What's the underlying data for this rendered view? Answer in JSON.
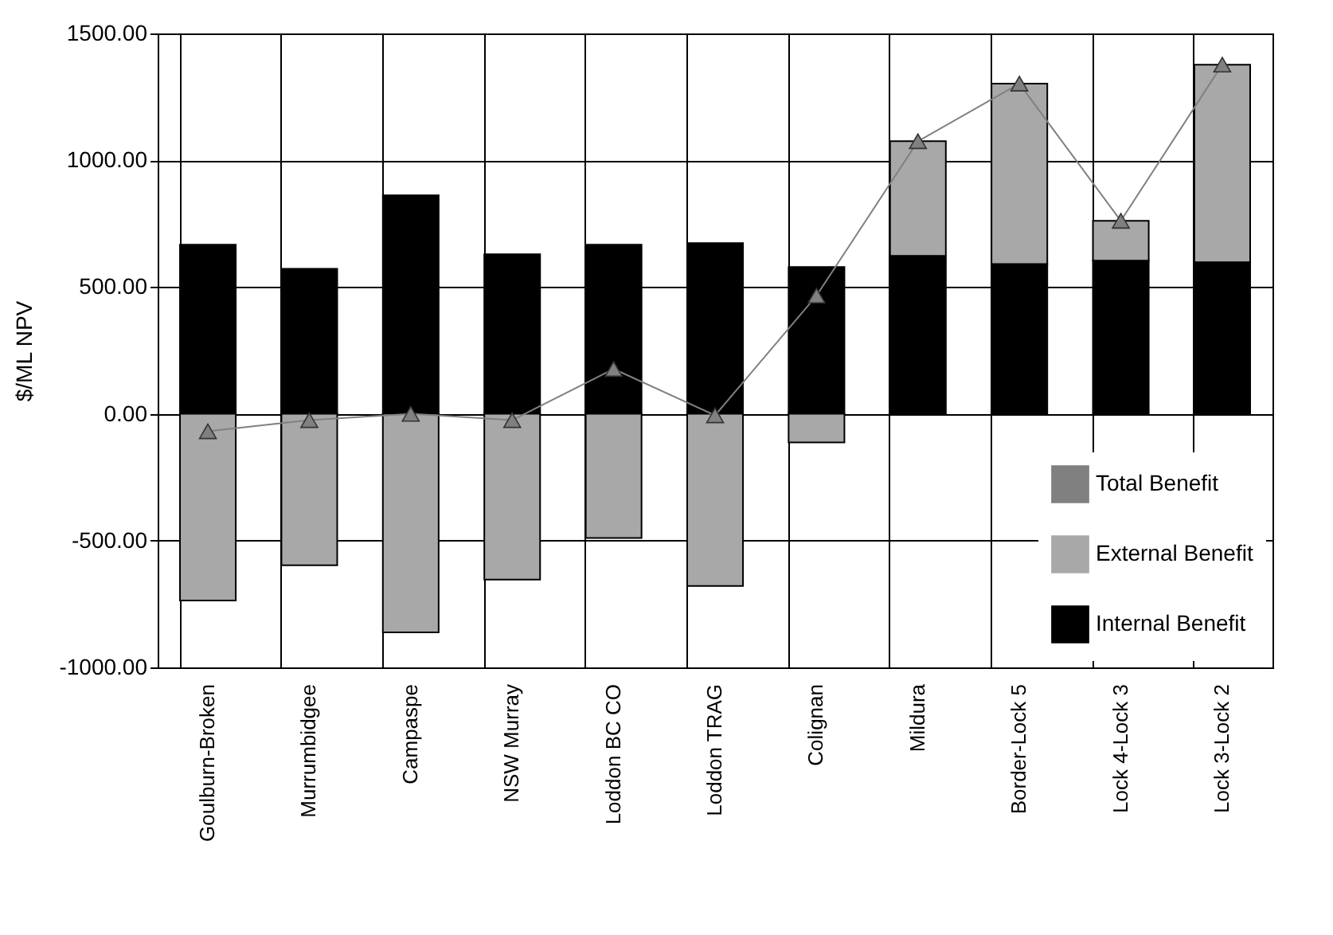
{
  "chart_data": {
    "type": "bar",
    "stacked": true,
    "ylabel": "$/ML NPV",
    "categories": [
      "Goulburn-Broken",
      "Murrumbidgee",
      "Campaspe",
      "NSW Murray",
      "Loddon BC CO",
      "Loddon TRAG",
      "Colignan",
      "Mildura",
      "Border-Lock 5",
      "Lock 4-Lock 3",
      "Lock 3-Lock 2"
    ],
    "series": [
      {
        "name": "Internal Benefit",
        "color": "#000000",
        "values": [
          667,
          572,
          862,
          629,
          667,
          673,
          579,
          623,
          591,
          604,
          598
        ]
      },
      {
        "name": "External Benefit",
        "color": "#a8a8a8",
        "values": [
          -736,
          -597,
          -862,
          -654,
          -490,
          -679,
          -113,
          452,
          711,
          157,
          779
        ]
      },
      {
        "name": "Total Benefit",
        "type": "line",
        "color": "#808080",
        "marker": "triangle",
        "values": [
          -69,
          -25,
          0,
          -25,
          177,
          -6,
          466,
          1075,
          1302,
          761,
          1377
        ]
      }
    ],
    "ylim": [
      -1000,
      1500
    ],
    "yticks": [
      {
        "value": -1000,
        "label": "-1000.00"
      },
      {
        "value": -500,
        "label": "-500.00"
      },
      {
        "value": 0,
        "label": "0.00"
      },
      {
        "value": 500,
        "label": "500.00"
      },
      {
        "value": 1000,
        "label": "1000.00"
      },
      {
        "value": 1500,
        "label": "1500.00"
      }
    ],
    "grid": true,
    "legend": "bottom right"
  }
}
